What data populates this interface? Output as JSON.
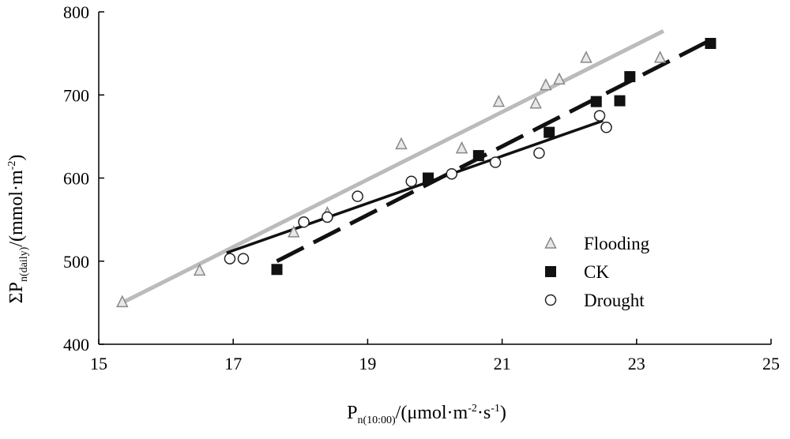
{
  "chart_data": {
    "type": "scatter",
    "title": "",
    "xlabel": "Pn(10:00)/(μmol·m-2·s-1)",
    "ylabel": "ΣPn(daily)/(mmol·m-2)",
    "xlabel_parts": {
      "main": "P",
      "sub": "n(10:00)",
      "unit_open": "/(μmol·m",
      "sup1": "-2",
      "mid": "·s",
      "sup2": "-1",
      "close": ")"
    },
    "ylabel_parts": {
      "sigma": "Σ",
      "main": "P",
      "sub": "n(daily)",
      "unit_open": "/(mmol·m",
      "sup": "-2",
      "close": ")"
    },
    "xlim": [
      15,
      25
    ],
    "ylim": [
      400,
      800
    ],
    "xticks": [
      15,
      17,
      19,
      21,
      23,
      25
    ],
    "yticks": [
      400,
      500,
      600,
      700,
      800
    ],
    "grid": false,
    "legend_position": "right",
    "series": [
      {
        "name": "Flooding",
        "marker": "triangle",
        "color": "#888888",
        "points": [
          [
            15.35,
            451
          ],
          [
            16.5,
            489
          ],
          [
            17.9,
            535
          ],
          [
            18.4,
            558
          ],
          [
            19.5,
            641
          ],
          [
            20.4,
            636
          ],
          [
            20.95,
            692
          ],
          [
            21.5,
            690
          ],
          [
            21.65,
            712
          ],
          [
            21.85,
            719
          ],
          [
            22.25,
            745
          ],
          [
            23.35,
            745
          ]
        ],
        "fit": [
          [
            15.35,
            450
          ],
          [
            23.4,
            777
          ]
        ],
        "fit_color": "#bbbbbb",
        "fit_style": "solid"
      },
      {
        "name": "CK",
        "marker": "square",
        "color": "#111111",
        "points": [
          [
            17.65,
            490
          ],
          [
            19.9,
            600
          ],
          [
            20.65,
            627
          ],
          [
            21.7,
            655
          ],
          [
            22.4,
            692
          ],
          [
            22.75,
            693
          ],
          [
            22.9,
            722
          ],
          [
            24.1,
            762
          ]
        ],
        "fit": [
          [
            17.65,
            500
          ],
          [
            24.1,
            766
          ]
        ],
        "fit_color": "#111111",
        "fit_style": "dashed"
      },
      {
        "name": "Drought",
        "marker": "circle",
        "color": "#222222",
        "points": [
          [
            16.95,
            503
          ],
          [
            17.15,
            503
          ],
          [
            18.05,
            547
          ],
          [
            18.4,
            553
          ],
          [
            18.85,
            578
          ],
          [
            19.65,
            596
          ],
          [
            20.25,
            605
          ],
          [
            20.9,
            619
          ],
          [
            21.55,
            630
          ],
          [
            22.45,
            675
          ],
          [
            22.55,
            661
          ]
        ],
        "fit": [
          [
            16.9,
            510
          ],
          [
            22.5,
            669
          ]
        ],
        "fit_color": "#111111",
        "fit_style": "solid"
      }
    ]
  }
}
